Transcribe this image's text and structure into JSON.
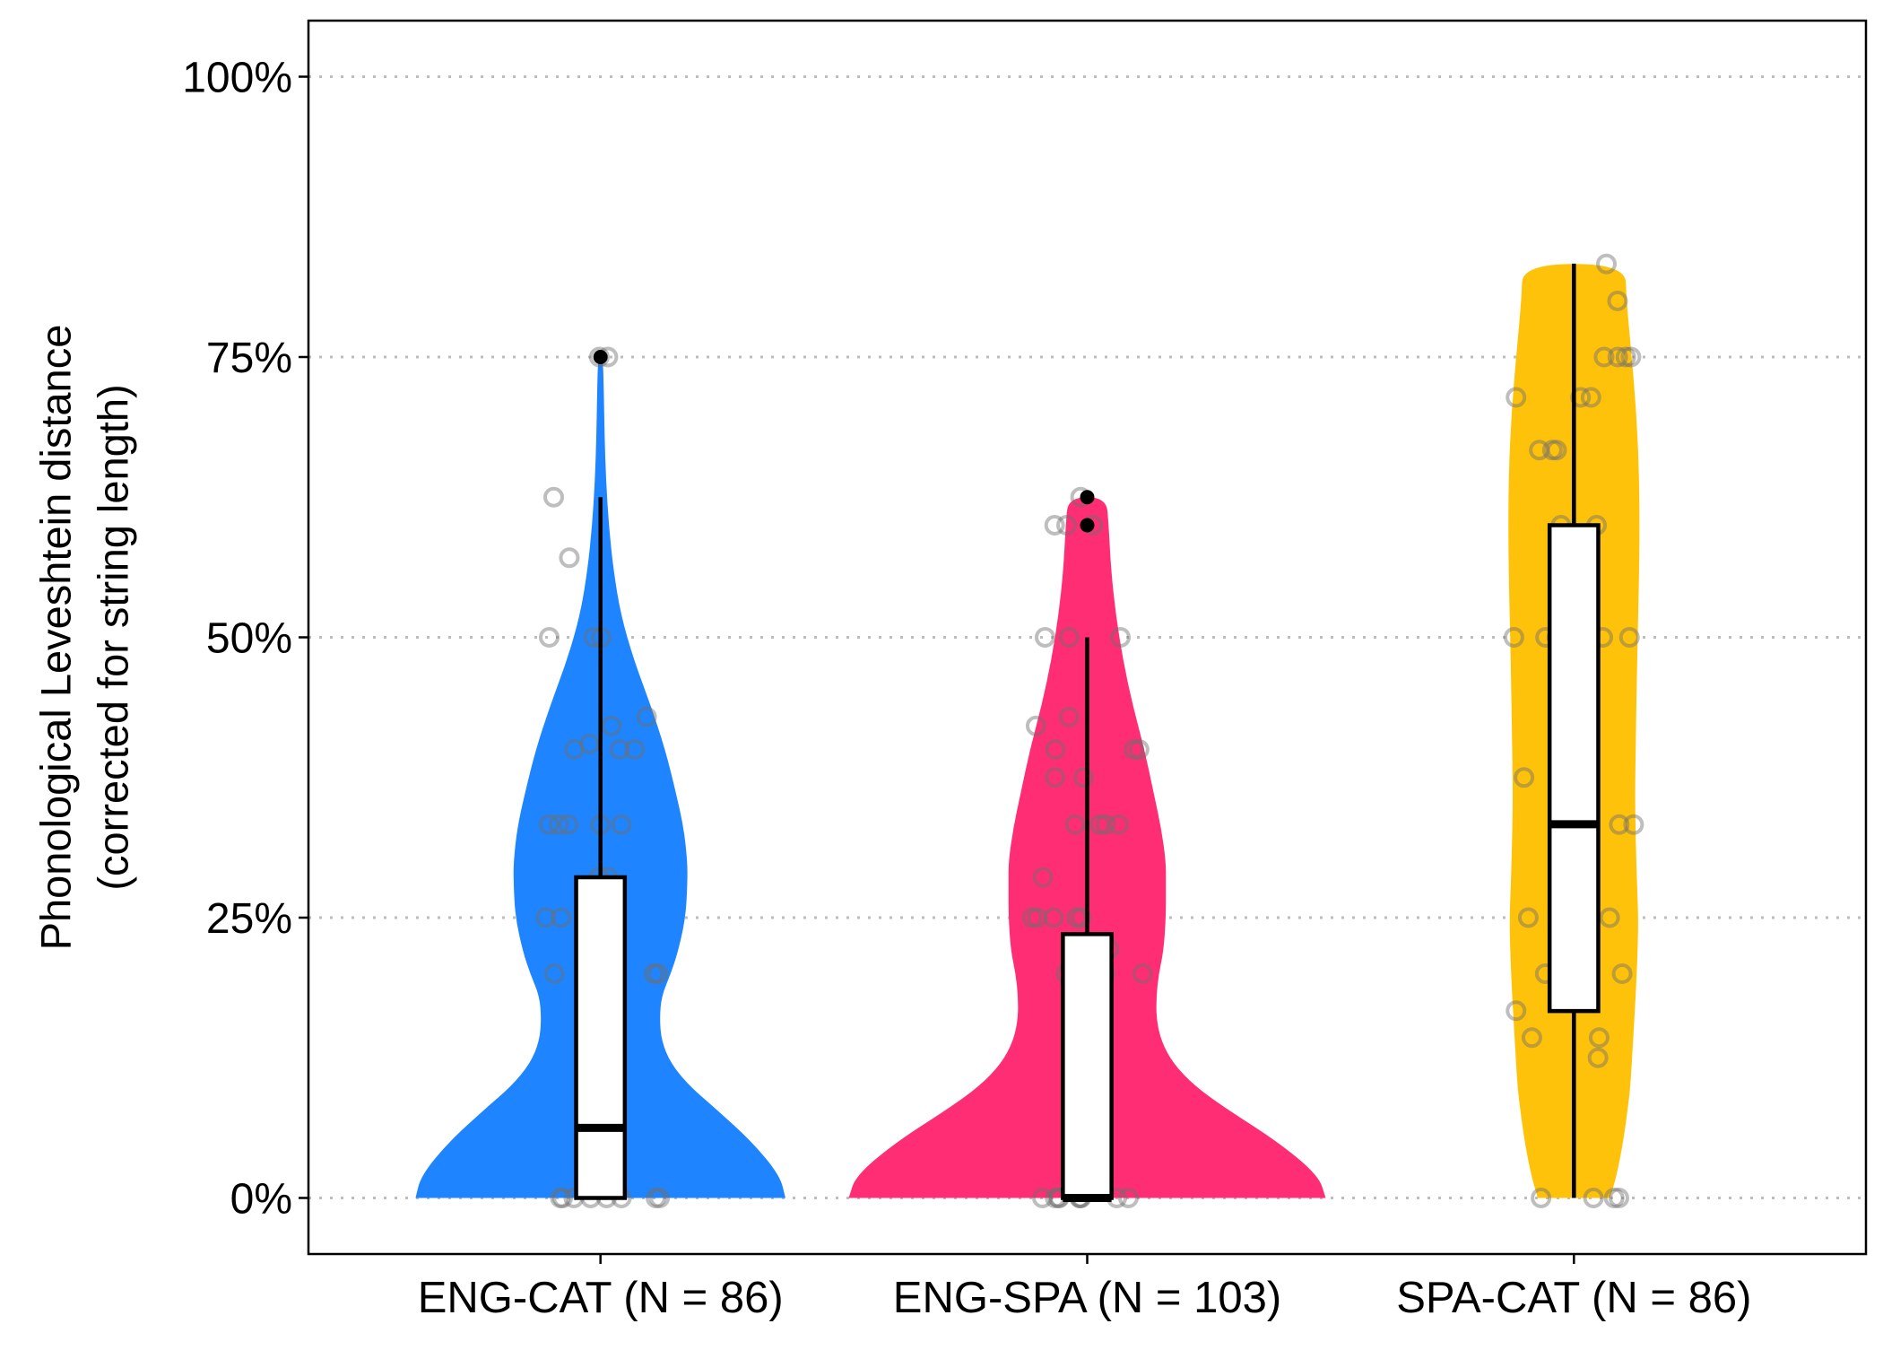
{
  "chart_data": {
    "type": "violin",
    "title": "",
    "xlabel": "",
    "ylabel_lines": [
      "Phonological Leveshtein distance",
      "(corrected for string length)"
    ],
    "ylim": [
      -0.05,
      1.05
    ],
    "yticks": [
      {
        "value": 0,
        "label": "0%"
      },
      {
        "value": 0.25,
        "label": "25%"
      },
      {
        "value": 0.5,
        "label": "50%"
      },
      {
        "value": 0.75,
        "label": "75%"
      },
      {
        "value": 1.0,
        "label": "100%"
      }
    ],
    "grid": "major-y-dotted",
    "legend": "none",
    "categories": [
      "ENG-CAT (N = 86)",
      "ENG-SPA (N = 103)",
      "SPA-CAT (N = 86)"
    ],
    "series": [
      {
        "category": "ENG-CAT (N = 86)",
        "color": "#1E84FF",
        "violin_max_halfwidth": 0.38,
        "density": [
          [
            0.0,
            1.0
          ],
          [
            0.02,
            0.97
          ],
          [
            0.05,
            0.82
          ],
          [
            0.08,
            0.62
          ],
          [
            0.1,
            0.48
          ],
          [
            0.12,
            0.38
          ],
          [
            0.14,
            0.33
          ],
          [
            0.16,
            0.32
          ],
          [
            0.18,
            0.33
          ],
          [
            0.2,
            0.38
          ],
          [
            0.22,
            0.42
          ],
          [
            0.25,
            0.46
          ],
          [
            0.28,
            0.47
          ],
          [
            0.3,
            0.47
          ],
          [
            0.33,
            0.45
          ],
          [
            0.36,
            0.41
          ],
          [
            0.4,
            0.35
          ],
          [
            0.44,
            0.27
          ],
          [
            0.48,
            0.18
          ],
          [
            0.52,
            0.11
          ],
          [
            0.56,
            0.07
          ],
          [
            0.6,
            0.045
          ],
          [
            0.64,
            0.03
          ],
          [
            0.68,
            0.022
          ],
          [
            0.72,
            0.018
          ],
          [
            0.75,
            0.013
          ]
        ],
        "box": {
          "min": 0,
          "q1": 0,
          "median": 0.0625,
          "q3": 0.286,
          "max": 0.625
        },
        "outliers": [
          0.75
        ],
        "points": [
          0.75,
          0.75,
          0.625,
          0.571,
          0.5,
          0.5,
          0.5,
          0.429,
          0.421,
          0.405,
          0.4,
          0.4,
          0.4,
          0.333,
          0.333,
          0.333,
          0.333,
          0.333,
          0.286,
          0.286,
          0.25,
          0.25,
          0.2,
          0.2,
          0.2,
          0.125,
          0.0,
          0.0,
          0.0,
          0.0,
          0.0,
          0.0,
          0.0,
          0.0
        ]
      },
      {
        "category": "ENG-SPA (N = 103)",
        "color": "#FF2D73",
        "violin_max_halfwidth": 0.49,
        "density": [
          [
            0.0,
            1.0
          ],
          [
            0.02,
            0.97
          ],
          [
            0.05,
            0.8
          ],
          [
            0.08,
            0.58
          ],
          [
            0.1,
            0.45
          ],
          [
            0.12,
            0.36
          ],
          [
            0.14,
            0.31
          ],
          [
            0.16,
            0.29
          ],
          [
            0.18,
            0.29
          ],
          [
            0.2,
            0.3
          ],
          [
            0.22,
            0.32
          ],
          [
            0.25,
            0.33
          ],
          [
            0.28,
            0.33
          ],
          [
            0.3,
            0.33
          ],
          [
            0.33,
            0.31
          ],
          [
            0.36,
            0.28
          ],
          [
            0.4,
            0.24
          ],
          [
            0.44,
            0.19
          ],
          [
            0.48,
            0.15
          ],
          [
            0.52,
            0.12
          ],
          [
            0.56,
            0.1
          ],
          [
            0.6,
            0.09
          ],
          [
            0.625,
            0.08
          ]
        ],
        "box": {
          "min": 0,
          "q1": 0,
          "median": 0,
          "q3": 0.2353,
          "max": 0.5
        },
        "outliers": [
          0.625,
          0.6
        ],
        "points": [
          0.625,
          0.6,
          0.6,
          0.6,
          0.5,
          0.5,
          0.5,
          0.429,
          0.421,
          0.4,
          0.4,
          0.4,
          0.375,
          0.375,
          0.333,
          0.333,
          0.333,
          0.333,
          0.286,
          0.25,
          0.25,
          0.25,
          0.25,
          0.25,
          0.222,
          0.2,
          0.2,
          0.2,
          0.167,
          0.143,
          0.0,
          0.0,
          0.0,
          0.0,
          0.0,
          0.0,
          0.0,
          0.0,
          0.0
        ]
      },
      {
        "category": "SPA-CAT (N = 86)",
        "color": "#FFC20A",
        "violin_max_halfwidth": 0.135,
        "density": [
          [
            0.0,
            0.55
          ],
          [
            0.02,
            0.65
          ],
          [
            0.05,
            0.75
          ],
          [
            0.08,
            0.82
          ],
          [
            0.1,
            0.86
          ],
          [
            0.14,
            0.9
          ],
          [
            0.18,
            0.94
          ],
          [
            0.22,
            0.97
          ],
          [
            0.25,
            0.98
          ],
          [
            0.28,
            0.96
          ],
          [
            0.32,
            0.94
          ],
          [
            0.36,
            0.93
          ],
          [
            0.4,
            0.94
          ],
          [
            0.44,
            0.95
          ],
          [
            0.5,
            0.97
          ],
          [
            0.55,
            0.99
          ],
          [
            0.6,
            1.0
          ],
          [
            0.65,
            0.99
          ],
          [
            0.7,
            0.95
          ],
          [
            0.75,
            0.88
          ],
          [
            0.8,
            0.8
          ],
          [
            0.833,
            0.78
          ]
        ],
        "box": {
          "min": 0,
          "q1": 0.1667,
          "median": 0.3333,
          "q3": 0.6,
          "max": 0.8333
        },
        "outliers": [],
        "points": [
          0.833,
          0.8,
          0.75,
          0.75,
          0.75,
          0.75,
          0.714,
          0.714,
          0.714,
          0.667,
          0.667,
          0.667,
          0.6,
          0.6,
          0.5,
          0.5,
          0.5,
          0.5,
          0.5,
          0.429,
          0.4,
          0.375,
          0.333,
          0.333,
          0.333,
          0.286,
          0.25,
          0.25,
          0.25,
          0.2,
          0.2,
          0.167,
          0.143,
          0.143,
          0.125,
          0.0,
          0.0,
          0.0,
          0.0
        ]
      }
    ]
  }
}
